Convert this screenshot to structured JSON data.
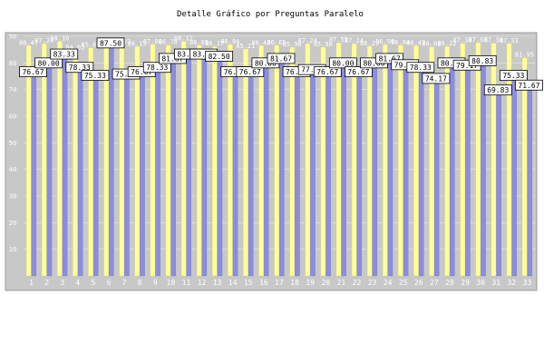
{
  "chart_data": {
    "type": "bar",
    "title": "Detalle Gráfico por Preguntas Paralelo",
    "xlabel": "",
    "ylabel": "",
    "ylim": [
      0,
      90
    ],
    "yticks": [
      10,
      20,
      30,
      40,
      50,
      60,
      70,
      80,
      90
    ],
    "grid": true,
    "legend": "none",
    "colors": {
      "plot_bg": "#c8c8c8",
      "frame": "#9a9a9a",
      "series_a": "#8c8ce0",
      "series_b": "#ffff99",
      "label_bg": "#ffffff"
    },
    "categories": [
      "1",
      "2",
      "3",
      "4",
      "5",
      "6",
      "7",
      "8",
      "9",
      "10",
      "11",
      "12",
      "13",
      "14",
      "15",
      "16",
      "17",
      "18",
      "19",
      "20",
      "21",
      "22",
      "23",
      "24",
      "25",
      "26",
      "27",
      "28",
      "29",
      "30",
      "31",
      "32",
      "33"
    ],
    "series": [
      {
        "values": [
          76.67,
          80.0,
          83.33,
          78.33,
          75.33,
          87.5,
          75.83,
          76.67,
          78.33,
          81.67,
          83.33,
          83.33,
          82.5,
          76.67,
          76.67,
          80.0,
          81.67,
          76.67,
          77.5,
          76.67,
          80.0,
          76.67,
          80.0,
          81.67,
          79.33,
          78.33,
          74.17,
          80.0,
          79.17,
          80.83,
          69.83,
          75.33,
          71.67
        ]
      },
      {
        "values": [
          86.47,
          87.24,
          88.1,
          84.65,
          85.66,
          86.84,
          86.77,
          86.15,
          87.0,
          86.7,
          88.12,
          86.65,
          86.17,
          86.94,
          85.21,
          86.43,
          86.65,
          85.9,
          87.24,
          85.9,
          87.55,
          87.24,
          86.29,
          86.9,
          86.64,
          86.47,
          86.02,
          86.22,
          87.38,
          87.6,
          87.38,
          87.33,
          81.95
        ]
      }
    ]
  }
}
